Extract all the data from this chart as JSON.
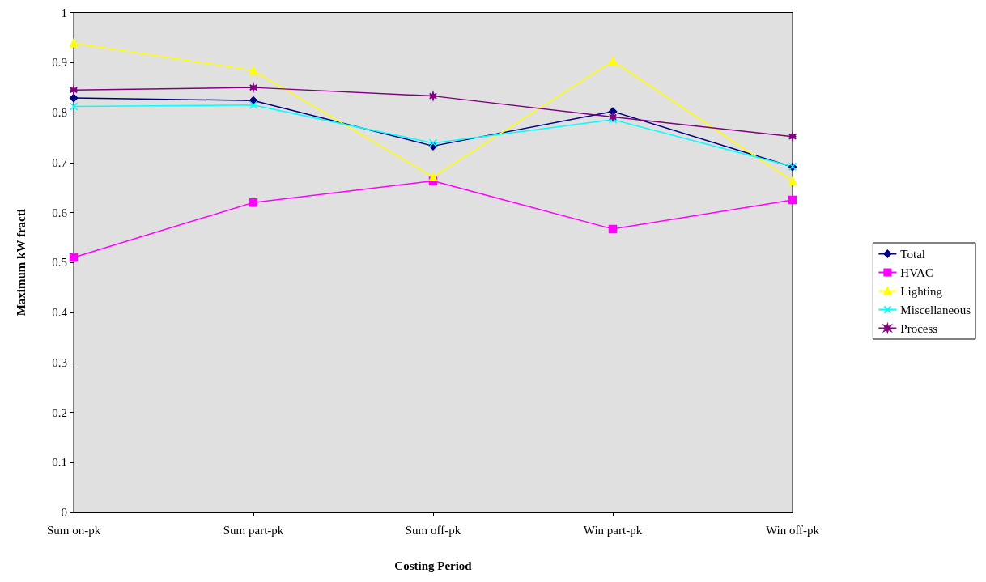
{
  "chart_data": {
    "type": "line",
    "xlabel": "Costing Period",
    "ylabel": "Maximum kW fracti",
    "categories": [
      "Sum on-pk",
      "Sum part-pk",
      "Sum off-pk",
      "Win part-pk",
      "Win off-pk"
    ],
    "series": [
      {
        "name": "Total",
        "color": "#000080",
        "marker": "diamond",
        "values": [
          0.829,
          0.824,
          0.733,
          0.802,
          0.691
        ]
      },
      {
        "name": "HVAC",
        "color": "#ff00ff",
        "marker": "square",
        "values": [
          0.51,
          0.62,
          0.663,
          0.567,
          0.625
        ]
      },
      {
        "name": "Lighting",
        "color": "#ffff00",
        "marker": "triangle",
        "values": [
          0.939,
          0.884,
          0.671,
          0.903,
          0.663
        ]
      },
      {
        "name": "Miscellaneous",
        "color": "#00ffff",
        "marker": "cross",
        "values": [
          0.812,
          0.815,
          0.739,
          0.786,
          0.692
        ]
      },
      {
        "name": "Process",
        "color": "#800080",
        "marker": "star",
        "values": [
          0.845,
          0.85,
          0.833,
          0.791,
          0.752
        ]
      }
    ],
    "ylim": [
      0,
      1
    ],
    "yticks": [
      0,
      0.1,
      0.2,
      0.3,
      0.4,
      0.5,
      0.6,
      0.7,
      0.8,
      0.9,
      1
    ],
    "grid": false,
    "legend": "right"
  }
}
